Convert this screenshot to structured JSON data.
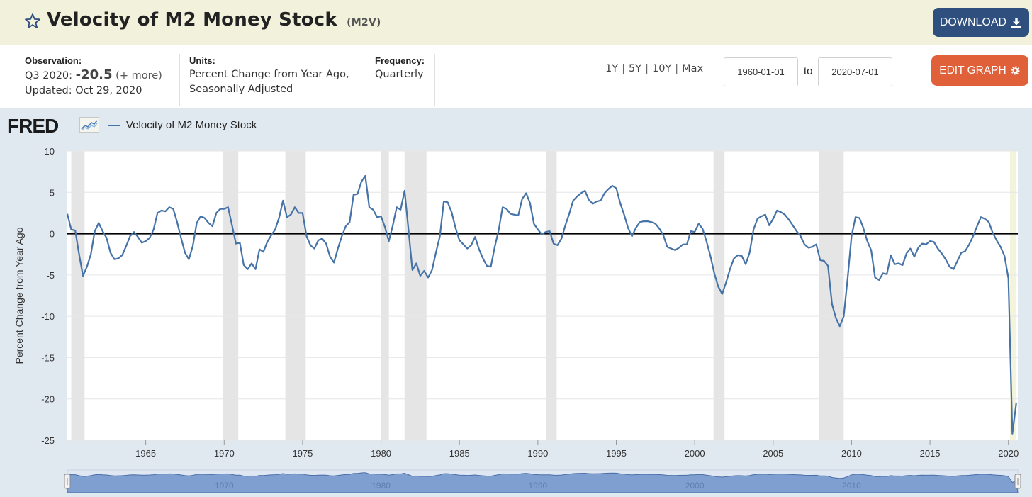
{
  "header": {
    "title": "Velocity of M2 Money Stock",
    "series_id": "(M2V)",
    "download_label": "DOWNLOAD",
    "edit_label": "EDIT GRAPH"
  },
  "info": {
    "observation_label": "Observation:",
    "observation_period": "Q3 2020:",
    "observation_value": "-20.5",
    "observation_more": "(+ more)",
    "updated": "Updated: Oct 29, 2020",
    "units_label": "Units:",
    "units_line1": "Percent Change from Year Ago,",
    "units_line2": "Seasonally Adjusted",
    "frequency_label": "Frequency:",
    "frequency_value": "Quarterly"
  },
  "ranges": [
    "1Y",
    "5Y",
    "10Y",
    "Max"
  ],
  "dates": {
    "start": "1960-01-01",
    "to_label": "to",
    "end": "2020-07-01"
  },
  "branding": {
    "logo": "FRED"
  },
  "colors": {
    "series": "#4572a7",
    "accent_download": "#2f4f7f",
    "accent_edit": "#e0603a",
    "recession": "#e5e5e5"
  },
  "chart_data": {
    "type": "line",
    "title": "Velocity of M2 Money Stock",
    "ylabel": "Percent Change from Year Ago",
    "xlabel": "",
    "ylim": [
      -25,
      10
    ],
    "xlim": [
      1960.0,
      2020.6
    ],
    "y_ticks": [
      "10",
      "5",
      "0",
      "-5",
      "-10",
      "-15",
      "-20",
      "-25"
    ],
    "x_ticks": [
      "1965",
      "1970",
      "1975",
      "1980",
      "1985",
      "1990",
      "1995",
      "2000",
      "2005",
      "2010",
      "2015",
      "2020"
    ],
    "navigator_labels": [
      "1970",
      "1980",
      "1990",
      "2000",
      "2010"
    ],
    "recessions": [
      [
        1960.25,
        1961.1
      ],
      [
        1969.9,
        1970.9
      ],
      [
        1973.9,
        1975.2
      ],
      [
        1980.0,
        1980.5
      ],
      [
        1981.5,
        1982.9
      ],
      [
        1990.5,
        1991.2
      ],
      [
        2001.2,
        2001.9
      ],
      [
        2007.9,
        2009.5
      ],
      [
        2020.1,
        2020.5
      ]
    ],
    "series": [
      {
        "name": "Velocity of M2 Money Stock",
        "points": [
          [
            1960.0,
            2.4
          ],
          [
            1960.25,
            0.5
          ],
          [
            1960.5,
            0.4
          ],
          [
            1960.75,
            -2.5
          ],
          [
            1961.0,
            -5.1
          ],
          [
            1961.25,
            -4.0
          ],
          [
            1961.5,
            -2.5
          ],
          [
            1961.75,
            0.3
          ],
          [
            1962.0,
            1.3
          ],
          [
            1962.25,
            0.3
          ],
          [
            1962.5,
            -0.5
          ],
          [
            1962.75,
            -2.3
          ],
          [
            1963.0,
            -3.1
          ],
          [
            1963.25,
            -3.0
          ],
          [
            1963.5,
            -2.6
          ],
          [
            1963.75,
            -1.5
          ],
          [
            1964.0,
            -0.3
          ],
          [
            1964.25,
            0.2
          ],
          [
            1964.5,
            -0.4
          ],
          [
            1964.75,
            -1.1
          ],
          [
            1965.0,
            -0.9
          ],
          [
            1965.25,
            -0.5
          ],
          [
            1965.5,
            0.5
          ],
          [
            1965.75,
            2.5
          ],
          [
            1966.0,
            2.8
          ],
          [
            1966.25,
            2.7
          ],
          [
            1966.5,
            3.2
          ],
          [
            1966.75,
            3.0
          ],
          [
            1967.0,
            1.4
          ],
          [
            1967.25,
            -0.5
          ],
          [
            1967.5,
            -2.3
          ],
          [
            1967.75,
            -3.1
          ],
          [
            1968.0,
            -1.5
          ],
          [
            1968.25,
            1.3
          ],
          [
            1968.5,
            2.1
          ],
          [
            1968.75,
            1.9
          ],
          [
            1969.0,
            1.3
          ],
          [
            1969.25,
            0.9
          ],
          [
            1969.5,
            2.5
          ],
          [
            1969.75,
            3.0
          ],
          [
            1970.0,
            3.0
          ],
          [
            1970.25,
            3.2
          ],
          [
            1970.5,
            1.0
          ],
          [
            1970.75,
            -1.2
          ],
          [
            1971.0,
            -1.1
          ],
          [
            1971.25,
            -3.8
          ],
          [
            1971.5,
            -4.3
          ],
          [
            1971.75,
            -3.6
          ],
          [
            1972.0,
            -4.3
          ],
          [
            1972.25,
            -1.9
          ],
          [
            1972.5,
            -2.2
          ],
          [
            1972.75,
            -1.0
          ],
          [
            1973.0,
            -0.2
          ],
          [
            1973.25,
            0.5
          ],
          [
            1973.5,
            1.9
          ],
          [
            1973.75,
            4.0
          ],
          [
            1974.0,
            2.0
          ],
          [
            1974.25,
            2.3
          ],
          [
            1974.5,
            3.2
          ],
          [
            1974.75,
            2.5
          ],
          [
            1975.0,
            2.5
          ],
          [
            1975.25,
            -0.3
          ],
          [
            1975.5,
            -1.4
          ],
          [
            1975.75,
            -1.8
          ],
          [
            1976.0,
            -0.8
          ],
          [
            1976.25,
            -0.6
          ],
          [
            1976.5,
            -1.2
          ],
          [
            1976.75,
            -2.8
          ],
          [
            1977.0,
            -3.5
          ],
          [
            1977.25,
            -1.8
          ],
          [
            1977.5,
            -0.3
          ],
          [
            1977.75,
            0.9
          ],
          [
            1978.0,
            1.4
          ],
          [
            1978.25,
            4.7
          ],
          [
            1978.5,
            4.8
          ],
          [
            1978.75,
            6.3
          ],
          [
            1979.0,
            7.0
          ],
          [
            1979.25,
            3.2
          ],
          [
            1979.5,
            2.9
          ],
          [
            1979.75,
            2.0
          ],
          [
            1980.0,
            2.1
          ],
          [
            1980.25,
            0.8
          ],
          [
            1980.5,
            -0.9
          ],
          [
            1980.75,
            1.0
          ],
          [
            1981.0,
            3.2
          ],
          [
            1981.25,
            2.9
          ],
          [
            1981.5,
            5.2
          ],
          [
            1981.75,
            0.5
          ],
          [
            1982.0,
            -4.4
          ],
          [
            1982.25,
            -3.6
          ],
          [
            1982.5,
            -5.1
          ],
          [
            1982.75,
            -4.5
          ],
          [
            1983.0,
            -5.3
          ],
          [
            1983.25,
            -4.4
          ],
          [
            1983.5,
            -2.3
          ],
          [
            1983.75,
            -0.3
          ],
          [
            1984.0,
            3.9
          ],
          [
            1984.25,
            3.8
          ],
          [
            1984.5,
            2.6
          ],
          [
            1984.75,
            0.7
          ],
          [
            1985.0,
            -0.8
          ],
          [
            1985.25,
            -1.3
          ],
          [
            1985.5,
            -1.8
          ],
          [
            1985.75,
            -1.4
          ],
          [
            1986.0,
            -0.4
          ],
          [
            1986.25,
            -1.9
          ],
          [
            1986.5,
            -3.0
          ],
          [
            1986.75,
            -3.9
          ],
          [
            1987.0,
            -4.0
          ],
          [
            1987.25,
            -1.6
          ],
          [
            1987.5,
            0.4
          ],
          [
            1987.75,
            3.2
          ],
          [
            1988.0,
            3.0
          ],
          [
            1988.25,
            2.4
          ],
          [
            1988.5,
            2.3
          ],
          [
            1988.75,
            2.2
          ],
          [
            1989.0,
            4.2
          ],
          [
            1989.25,
            4.9
          ],
          [
            1989.5,
            3.7
          ],
          [
            1989.75,
            1.2
          ],
          [
            1990.0,
            0.5
          ],
          [
            1990.25,
            -0.1
          ],
          [
            1990.5,
            0.2
          ],
          [
            1990.75,
            0.3
          ],
          [
            1991.0,
            -1.2
          ],
          [
            1991.25,
            -1.4
          ],
          [
            1991.5,
            -0.6
          ],
          [
            1991.75,
            1.0
          ],
          [
            1992.0,
            2.4
          ],
          [
            1992.25,
            4.0
          ],
          [
            1992.5,
            4.5
          ],
          [
            1992.75,
            4.9
          ],
          [
            1993.0,
            5.2
          ],
          [
            1993.25,
            4.1
          ],
          [
            1993.5,
            3.6
          ],
          [
            1993.75,
            3.9
          ],
          [
            1994.0,
            4.0
          ],
          [
            1994.25,
            4.9
          ],
          [
            1994.5,
            5.4
          ],
          [
            1994.75,
            5.8
          ],
          [
            1995.0,
            5.5
          ],
          [
            1995.25,
            3.7
          ],
          [
            1995.5,
            2.3
          ],
          [
            1995.75,
            0.7
          ],
          [
            1996.0,
            -0.3
          ],
          [
            1996.25,
            0.7
          ],
          [
            1996.5,
            1.4
          ],
          [
            1996.75,
            1.5
          ],
          [
            1997.0,
            1.5
          ],
          [
            1997.25,
            1.4
          ],
          [
            1997.5,
            1.2
          ],
          [
            1997.75,
            0.6
          ],
          [
            1998.0,
            -0.2
          ],
          [
            1998.25,
            -1.6
          ],
          [
            1998.5,
            -1.8
          ],
          [
            1998.75,
            -2.0
          ],
          [
            1999.0,
            -1.7
          ],
          [
            1999.25,
            -1.3
          ],
          [
            1999.5,
            -1.3
          ],
          [
            1999.75,
            0.3
          ],
          [
            2000.0,
            0.2
          ],
          [
            2000.25,
            1.2
          ],
          [
            2000.5,
            0.6
          ],
          [
            2000.75,
            -0.9
          ],
          [
            2001.0,
            -2.7
          ],
          [
            2001.25,
            -4.8
          ],
          [
            2001.5,
            -6.4
          ],
          [
            2001.75,
            -7.3
          ],
          [
            2002.0,
            -5.9
          ],
          [
            2002.25,
            -4.3
          ],
          [
            2002.5,
            -3.0
          ],
          [
            2002.75,
            -2.6
          ],
          [
            2003.0,
            -2.7
          ],
          [
            2003.25,
            -3.7
          ],
          [
            2003.5,
            -2.3
          ],
          [
            2003.75,
            0.5
          ],
          [
            2004.0,
            1.8
          ],
          [
            2004.25,
            2.1
          ],
          [
            2004.5,
            2.3
          ],
          [
            2004.75,
            1.0
          ],
          [
            2005.0,
            1.8
          ],
          [
            2005.25,
            2.8
          ],
          [
            2005.5,
            2.6
          ],
          [
            2005.75,
            2.3
          ],
          [
            2006.0,
            1.7
          ],
          [
            2006.25,
            1.0
          ],
          [
            2006.5,
            0.3
          ],
          [
            2006.75,
            -0.3
          ],
          [
            2007.0,
            -1.3
          ],
          [
            2007.25,
            -1.7
          ],
          [
            2007.5,
            -1.6
          ],
          [
            2007.75,
            -1.3
          ],
          [
            2008.0,
            -3.2
          ],
          [
            2008.25,
            -3.3
          ],
          [
            2008.5,
            -3.9
          ],
          [
            2008.75,
            -8.5
          ],
          [
            2009.0,
            -10.2
          ],
          [
            2009.25,
            -11.2
          ],
          [
            2009.5,
            -10.0
          ],
          [
            2009.75,
            -5.4
          ],
          [
            2010.0,
            -0.3
          ],
          [
            2010.25,
            2.0
          ],
          [
            2010.5,
            1.9
          ],
          [
            2010.75,
            0.7
          ],
          [
            2011.0,
            -0.9
          ],
          [
            2011.25,
            -2.0
          ],
          [
            2011.5,
            -5.3
          ],
          [
            2011.75,
            -5.6
          ],
          [
            2012.0,
            -4.8
          ],
          [
            2012.25,
            -4.9
          ],
          [
            2012.5,
            -2.6
          ],
          [
            2012.75,
            -3.7
          ],
          [
            2013.0,
            -3.6
          ],
          [
            2013.25,
            -3.8
          ],
          [
            2013.5,
            -2.4
          ],
          [
            2013.75,
            -1.8
          ],
          [
            2014.0,
            -2.8
          ],
          [
            2014.25,
            -1.7
          ],
          [
            2014.5,
            -1.2
          ],
          [
            2014.75,
            -1.3
          ],
          [
            2015.0,
            -0.9
          ],
          [
            2015.25,
            -1.0
          ],
          [
            2015.5,
            -1.8
          ],
          [
            2015.75,
            -2.4
          ],
          [
            2016.0,
            -3.1
          ],
          [
            2016.25,
            -4.0
          ],
          [
            2016.5,
            -4.3
          ],
          [
            2016.75,
            -3.3
          ],
          [
            2017.0,
            -2.3
          ],
          [
            2017.25,
            -2.1
          ],
          [
            2017.5,
            -1.3
          ],
          [
            2017.75,
            -0.3
          ],
          [
            2018.0,
            0.9
          ],
          [
            2018.25,
            2.0
          ],
          [
            2018.5,
            1.8
          ],
          [
            2018.75,
            1.4
          ],
          [
            2019.0,
            0.1
          ],
          [
            2019.25,
            -0.8
          ],
          [
            2019.5,
            -1.6
          ],
          [
            2019.75,
            -2.7
          ],
          [
            2020.0,
            -5.4
          ],
          [
            2020.25,
            -24.2
          ],
          [
            2020.5,
            -20.5
          ]
        ]
      }
    ]
  }
}
